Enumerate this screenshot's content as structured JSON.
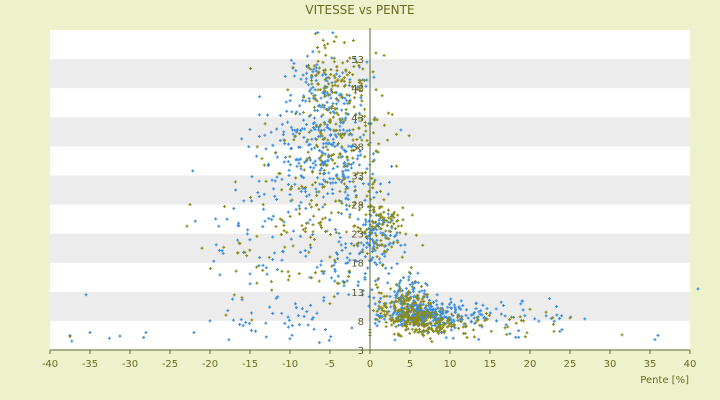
{
  "chart_data": {
    "type": "scatter",
    "title": "VITESSE vs PENTE",
    "xlabel": "Pente [%]",
    "ylabel": "",
    "xlim": [
      -40,
      40
    ],
    "ylim": [
      3,
      58
    ],
    "x_ticks": [
      -40,
      -35,
      -30,
      -25,
      -20,
      -15,
      -10,
      -5,
      0,
      5,
      10,
      15,
      20,
      25,
      30,
      35,
      40
    ],
    "x_tick_labels": [
      "-40",
      "-35",
      "-30",
      "-25",
      "-20",
      "-15",
      "-10",
      "-5",
      "0",
      "5",
      "10",
      "15",
      "20",
      "25",
      "30",
      "35",
      "40"
    ],
    "y_ticks": [
      3,
      8,
      13,
      18,
      23,
      28,
      33,
      38,
      43,
      48,
      53
    ],
    "y_tick_labels": [
      "3",
      "8",
      "13",
      "18",
      "23",
      "28",
      "33",
      "38",
      "43",
      "48",
      "53"
    ],
    "y_axis_position": "x=0",
    "grid": "alternating horizontal bands",
    "colors": {
      "background": "#eef2cc",
      "band_light": "#ffffff",
      "band_dark": "#ececec",
      "series_blue": "#3a8ee0",
      "series_olive": "#8a8a14",
      "text": "#6b6b1e"
    },
    "series": [
      {
        "color": "#3a8ee0",
        "clusters": [
          {
            "x": -5.5,
            "y": 45,
            "sx": 2.5,
            "sy": 5,
            "n": 180
          },
          {
            "x": -4,
            "y": 36,
            "sx": 3,
            "sy": 4,
            "n": 130
          },
          {
            "x": -9,
            "y": 33,
            "sx": 3.5,
            "sy": 5,
            "n": 100
          },
          {
            "x": 0.8,
            "y": 22,
            "sx": 1.3,
            "sy": 3,
            "n": 110
          },
          {
            "x": 6.5,
            "y": 9,
            "sx": 2.2,
            "sy": 1.2,
            "n": 260
          },
          {
            "x": 4,
            "y": 12,
            "sx": 1.5,
            "sy": 2,
            "n": 70
          },
          {
            "x": 11,
            "y": 9,
            "sx": 4,
            "sy": 1.2,
            "n": 70
          },
          {
            "x": 19,
            "y": 9,
            "sx": 3.5,
            "sy": 1.5,
            "n": 25
          },
          {
            "x": -14,
            "y": 22,
            "sx": 3,
            "sy": 6,
            "n": 45
          },
          {
            "x": -12,
            "y": 9,
            "sx": 5,
            "sy": 2.5,
            "n": 35
          },
          {
            "x": -3,
            "y": 17,
            "sx": 2.5,
            "sy": 4,
            "n": 60
          },
          {
            "x": 0,
            "y": 5,
            "sx": 20,
            "sy": 0.3,
            "n": 16
          }
        ],
        "points": [
          [
            41,
            13.5
          ],
          [
            -35.5,
            12.5
          ],
          [
            -35,
            6
          ],
          [
            -28,
            6
          ],
          [
            -22,
            6
          ],
          [
            -20,
            8
          ],
          [
            24,
            6.5
          ],
          [
            17.5,
            5.8
          ],
          [
            36,
            5.5
          ],
          [
            -37.5,
            5.5
          ]
        ]
      },
      {
        "color": "#8a8a14",
        "clusters": [
          {
            "x": -4.5,
            "y": 50,
            "sx": 2.2,
            "sy": 4,
            "n": 110
          },
          {
            "x": -3,
            "y": 40,
            "sx": 3,
            "sy": 5,
            "n": 110
          },
          {
            "x": -7,
            "y": 30,
            "sx": 4,
            "sy": 6,
            "n": 100
          },
          {
            "x": 1.3,
            "y": 24,
            "sx": 1.6,
            "sy": 3,
            "n": 90
          },
          {
            "x": 4.5,
            "y": 10,
            "sx": 1.8,
            "sy": 2,
            "n": 170
          },
          {
            "x": 7.5,
            "y": 7.5,
            "sx": 2.5,
            "sy": 1,
            "n": 120
          },
          {
            "x": -11,
            "y": 20,
            "sx": 5,
            "sy": 6,
            "n": 60
          },
          {
            "x": 13,
            "y": 7.5,
            "sx": 4,
            "sy": 1.2,
            "n": 40
          }
        ],
        "points": [
          [
            -22.5,
            28
          ],
          [
            -37.5,
            5.3
          ],
          [
            31.5,
            5.6
          ],
          [
            23,
            6.2
          ],
          [
            -21,
            20.5
          ],
          [
            -16,
            12
          ],
          [
            -18,
            9
          ],
          [
            22,
            9.5
          ],
          [
            25,
            8.5
          ],
          [
            20,
            10
          ],
          [
            0,
            5.5
          ],
          [
            0,
            6
          ],
          [
            0,
            6.5
          ]
        ]
      }
    ]
  }
}
